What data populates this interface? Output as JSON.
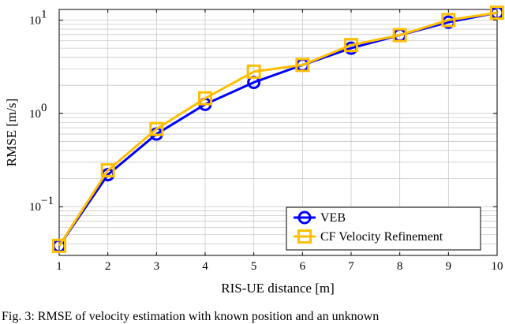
{
  "chart_data": {
    "type": "line",
    "xlabel": "RIS-UE distance [m]",
    "ylabel": "RMSE [m/s]",
    "x": [
      1,
      2,
      3,
      4,
      5,
      6,
      7,
      8,
      9,
      10
    ],
    "xlim": [
      1,
      10
    ],
    "ylim": [
      0.03,
      13
    ],
    "yscale": "log",
    "grid": true,
    "legend_position": "bottom-right",
    "x_ticks": [
      "1",
      "2",
      "3",
      "4",
      "5",
      "6",
      "7",
      "8",
      "9",
      "10"
    ],
    "y_ticks": [
      {
        "base": "10",
        "exp": "−1",
        "value": 0.1
      },
      {
        "base": "10",
        "exp": "0",
        "value": 1
      },
      {
        "base": "10",
        "exp": "1",
        "value": 10
      }
    ],
    "series": [
      {
        "name": "VEB",
        "color": "#0000ff",
        "marker": "circle",
        "values": [
          0.038,
          0.22,
          0.6,
          1.25,
          2.15,
          3.3,
          5.0,
          6.9,
          9.5,
          12.0
        ]
      },
      {
        "name": "CF Velocity Refinement",
        "color": "#ffbf00",
        "marker": "square",
        "values": [
          0.038,
          0.245,
          0.68,
          1.45,
          2.8,
          3.3,
          5.4,
          6.9,
          10.0,
          12.0
        ]
      }
    ]
  },
  "caption": "Fig. 3: RMSE of velocity estimation with known position and an unknown"
}
